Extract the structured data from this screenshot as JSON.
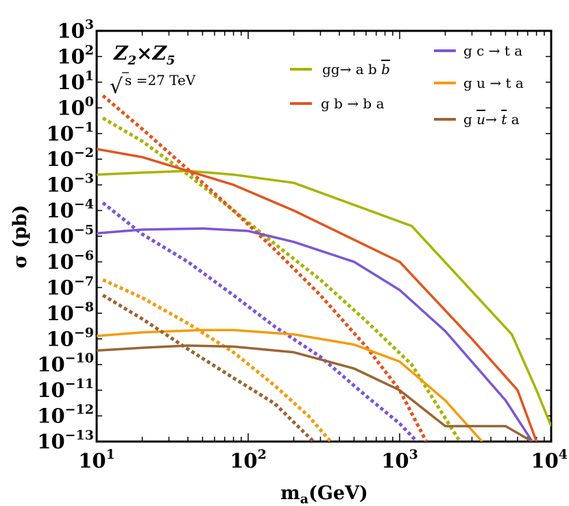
{
  "chart_data": {
    "type": "line",
    "title": "",
    "xlabel_main": "m",
    "xlabel_sub": "a",
    "xlabel_tail": "(GeV)",
    "ylabel": "σ (pb)",
    "x_scale": "log",
    "y_scale": "log",
    "xlim": [
      10,
      10000
    ],
    "ylim": [
      1e-13,
      1000
    ],
    "x_ticks": [
      {
        "value": 10,
        "base": "10",
        "exp": "1"
      },
      {
        "value": 100,
        "base": "10",
        "exp": "2"
      },
      {
        "value": 1000,
        "base": "10",
        "exp": "3"
      },
      {
        "value": 10000,
        "base": "10",
        "exp": "4"
      }
    ],
    "y_ticks": [
      {
        "value": 1000.0,
        "base": "10",
        "exp": "3"
      },
      {
        "value": 100.0,
        "base": "10",
        "exp": "2"
      },
      {
        "value": 10.0,
        "base": "10",
        "exp": "1"
      },
      {
        "value": 1.0,
        "base": "10",
        "exp": "0"
      },
      {
        "value": 0.1,
        "base": "10",
        "exp": "−1"
      },
      {
        "value": 0.01,
        "base": "10",
        "exp": "−2"
      },
      {
        "value": 0.001,
        "base": "10",
        "exp": "−3"
      },
      {
        "value": 0.0001,
        "base": "10",
        "exp": "−4"
      },
      {
        "value": 1e-05,
        "base": "10",
        "exp": "−5"
      },
      {
        "value": 1e-06,
        "base": "10",
        "exp": "−6"
      },
      {
        "value": 1e-07,
        "base": "10",
        "exp": "−7"
      },
      {
        "value": 1e-08,
        "base": "10",
        "exp": "−8"
      },
      {
        "value": 1e-09,
        "base": "10",
        "exp": "−9"
      },
      {
        "value": 1e-10,
        "base": "10",
        "exp": "−10"
      },
      {
        "value": 1e-11,
        "base": "10",
        "exp": "−11"
      },
      {
        "value": 1e-12,
        "base": "10",
        "exp": "−12"
      },
      {
        "value": 1e-13,
        "base": "10",
        "exp": "−13"
      }
    ],
    "annotations": {
      "model_a": "Z",
      "model_a_sub": "2",
      "model_times": "×",
      "model_b": "Z",
      "model_b_sub": "5",
      "sqrt_symbol": "√",
      "energy": "s =27 TeV"
    },
    "legend": [
      {
        "key": "gg_abb",
        "parts": [
          "gg→ a b ",
          "b"
        ],
        "bar_index": 1,
        "color": "#a8b300"
      },
      {
        "key": "gb_ba",
        "parts": [
          "g b → b a"
        ],
        "color": "#e3541e"
      },
      {
        "key": "gc_ta",
        "parts": [
          "g c → t a"
        ],
        "color": "#7b55d6"
      },
      {
        "key": "gu_ta",
        "parts": [
          "g u → t a"
        ],
        "color": "#f39c0a"
      },
      {
        "key": "gubar_tbara",
        "parts": [
          "g ",
          "u",
          "→ ",
          "t",
          " a"
        ],
        "bar_index": [
          1,
          3
        ],
        "color": "#9b6432"
      }
    ],
    "series": [
      {
        "name": "gg→ a b b̄ (solid)",
        "color": "#a8b300",
        "style": "solid",
        "x": [
          10,
          20,
          40,
          80,
          200,
          1200,
          5500,
          8000,
          10000
        ],
        "y": [
          0.0025,
          0.003,
          0.0035,
          0.0025,
          0.0012,
          2.5e-05,
          1.5e-09,
          1e-11,
          4e-13
        ]
      },
      {
        "name": "gg→ a b b̄ (dotted)",
        "color": "#a8b300",
        "style": "dotted",
        "x": [
          11,
          20,
          40,
          80,
          150,
          300,
          600,
          1200,
          2500
        ],
        "y": [
          0.4,
          0.05,
          0.0025,
          0.0001,
          5e-06,
          2e-07,
          5e-09,
          1e-10,
          1e-13
        ]
      },
      {
        "name": "g b → b a (solid)",
        "color": "#e3541e",
        "style": "solid",
        "x": [
          10,
          20,
          40,
          80,
          200,
          1000,
          3000,
          6000,
          8000
        ],
        "y": [
          0.025,
          0.012,
          0.0035,
          0.001,
          0.0001,
          1e-06,
          1e-09,
          1e-11,
          1e-13
        ]
      },
      {
        "name": "g b → b a (dotted)",
        "color": "#e3541e",
        "style": "dotted",
        "x": [
          11,
          20,
          40,
          80,
          150,
          300,
          600,
          1000,
          1500
        ],
        "y": [
          3.0,
          0.15,
          0.004,
          0.0001,
          3e-06,
          5e-08,
          5e-10,
          1e-11,
          1e-13
        ]
      },
      {
        "name": "g c → t a (solid)",
        "color": "#7b55d6",
        "style": "solid",
        "x": [
          10,
          20,
          50,
          100,
          200,
          500,
          1000,
          2000,
          5000,
          7500
        ],
        "y": [
          1.3e-05,
          1.8e-05,
          2e-05,
          1.6e-05,
          6e-06,
          1e-06,
          8e-08,
          2e-09,
          4e-12,
          1e-13
        ]
      },
      {
        "name": "g c → t a (dotted)",
        "color": "#7b55d6",
        "style": "dotted",
        "x": [
          11,
          20,
          40,
          80,
          150,
          300,
          600,
          1000,
          1300
        ],
        "y": [
          0.0002,
          1.2e-05,
          1e-06,
          5e-08,
          3e-09,
          2e-10,
          6e-12,
          5e-13,
          1e-13
        ]
      },
      {
        "name": "g u → t a (solid)",
        "color": "#f39c0a",
        "style": "solid",
        "x": [
          10,
          20,
          50,
          80,
          200,
          500,
          1000,
          2000,
          3500
        ],
        "y": [
          1.3e-09,
          1.8e-09,
          2.2e-09,
          2.2e-09,
          1.5e-09,
          6e-10,
          1.3e-10,
          4e-12,
          1e-13
        ]
      },
      {
        "name": "g u → t a (dotted)",
        "color": "#f39c0a",
        "style": "dotted",
        "x": [
          11,
          20,
          40,
          80,
          150,
          250,
          350
        ],
        "y": [
          2e-07,
          4e-08,
          4e-09,
          3e-10,
          1.5e-11,
          1e-12,
          1e-13
        ]
      },
      {
        "name": "g ū → t̄ a (solid)",
        "color": "#9b6432",
        "style": "solid",
        "x": [
          10,
          20,
          40,
          80,
          200,
          500,
          1000,
          2000,
          5000,
          7500
        ],
        "y": [
          3.5e-10,
          4.5e-10,
          5.5e-10,
          5e-10,
          3e-10,
          7e-11,
          1e-11,
          4e-13,
          4e-13,
          1e-13
        ]
      },
      {
        "name": "g ū → t̄ a (dotted)",
        "color": "#9b6432",
        "style": "dotted",
        "x": [
          11,
          20,
          40,
          80,
          150,
          270
        ],
        "y": [
          5e-08,
          6e-09,
          4e-10,
          3e-11,
          3e-12,
          1e-13
        ]
      }
    ]
  }
}
